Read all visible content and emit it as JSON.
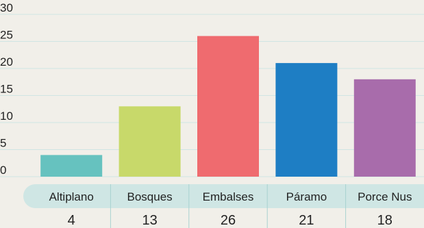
{
  "chart_data": {
    "type": "bar",
    "title": "",
    "xlabel": "",
    "ylabel": "",
    "categories": [
      "Altiplano",
      "Bosques",
      "Embalses",
      "Páramo",
      "Porce Nus"
    ],
    "values": [
      4,
      13,
      26,
      21,
      18
    ],
    "value_labels": [
      "4",
      "13",
      "26",
      "21",
      "18"
    ],
    "ylim": [
      0,
      30
    ],
    "yticks": [
      0,
      5,
      10,
      15,
      20,
      25,
      30
    ],
    "grid": true,
    "legend": "none",
    "colors": [
      "#66c2bf",
      "#c8d96a",
      "#ef6b6f",
      "#1e7ec4",
      "#a86cab"
    ],
    "style": {
      "background": "#f1efe9",
      "gridline": "#cfe5e3",
      "category_band": "#cfe6e4",
      "separator": "#a9d2cf",
      "text": "#222222"
    }
  }
}
